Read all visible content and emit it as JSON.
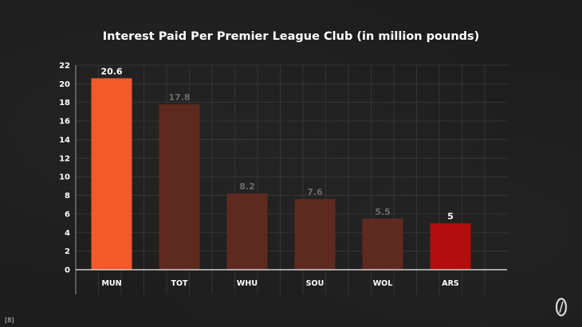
{
  "chart_data": {
    "type": "bar",
    "title": "Interest Paid Per Premier League Club (in million pounds)",
    "categories": [
      "MUN",
      "TOT",
      "WHU",
      "SOU",
      "WOL",
      "ARS"
    ],
    "values": [
      20.6,
      17.8,
      8.2,
      7.6,
      5.5,
      5
    ],
    "value_labels": [
      "20.6",
      "17.8",
      "8.2",
      "7.6",
      "5.5",
      "5"
    ],
    "ylim": [
      0,
      22
    ],
    "yticks": [
      0,
      2,
      4,
      6,
      8,
      10,
      12,
      14,
      16,
      18,
      20,
      22
    ],
    "grid": true,
    "xlabel": "",
    "ylabel": "",
    "bar_colors": [
      "#f4592a",
      "#5e2a1f",
      "#5e2a1f",
      "#5e2a1f",
      "#5e2a1f",
      "#b30d0d"
    ],
    "label_colors": [
      "#ffffff",
      "#6a6a6a",
      "#6a6a6a",
      "#6a6a6a",
      "#6a6a6a",
      "#ffffff"
    ]
  },
  "footnote": "[8]",
  "logo_icon": "brand-o-icon"
}
